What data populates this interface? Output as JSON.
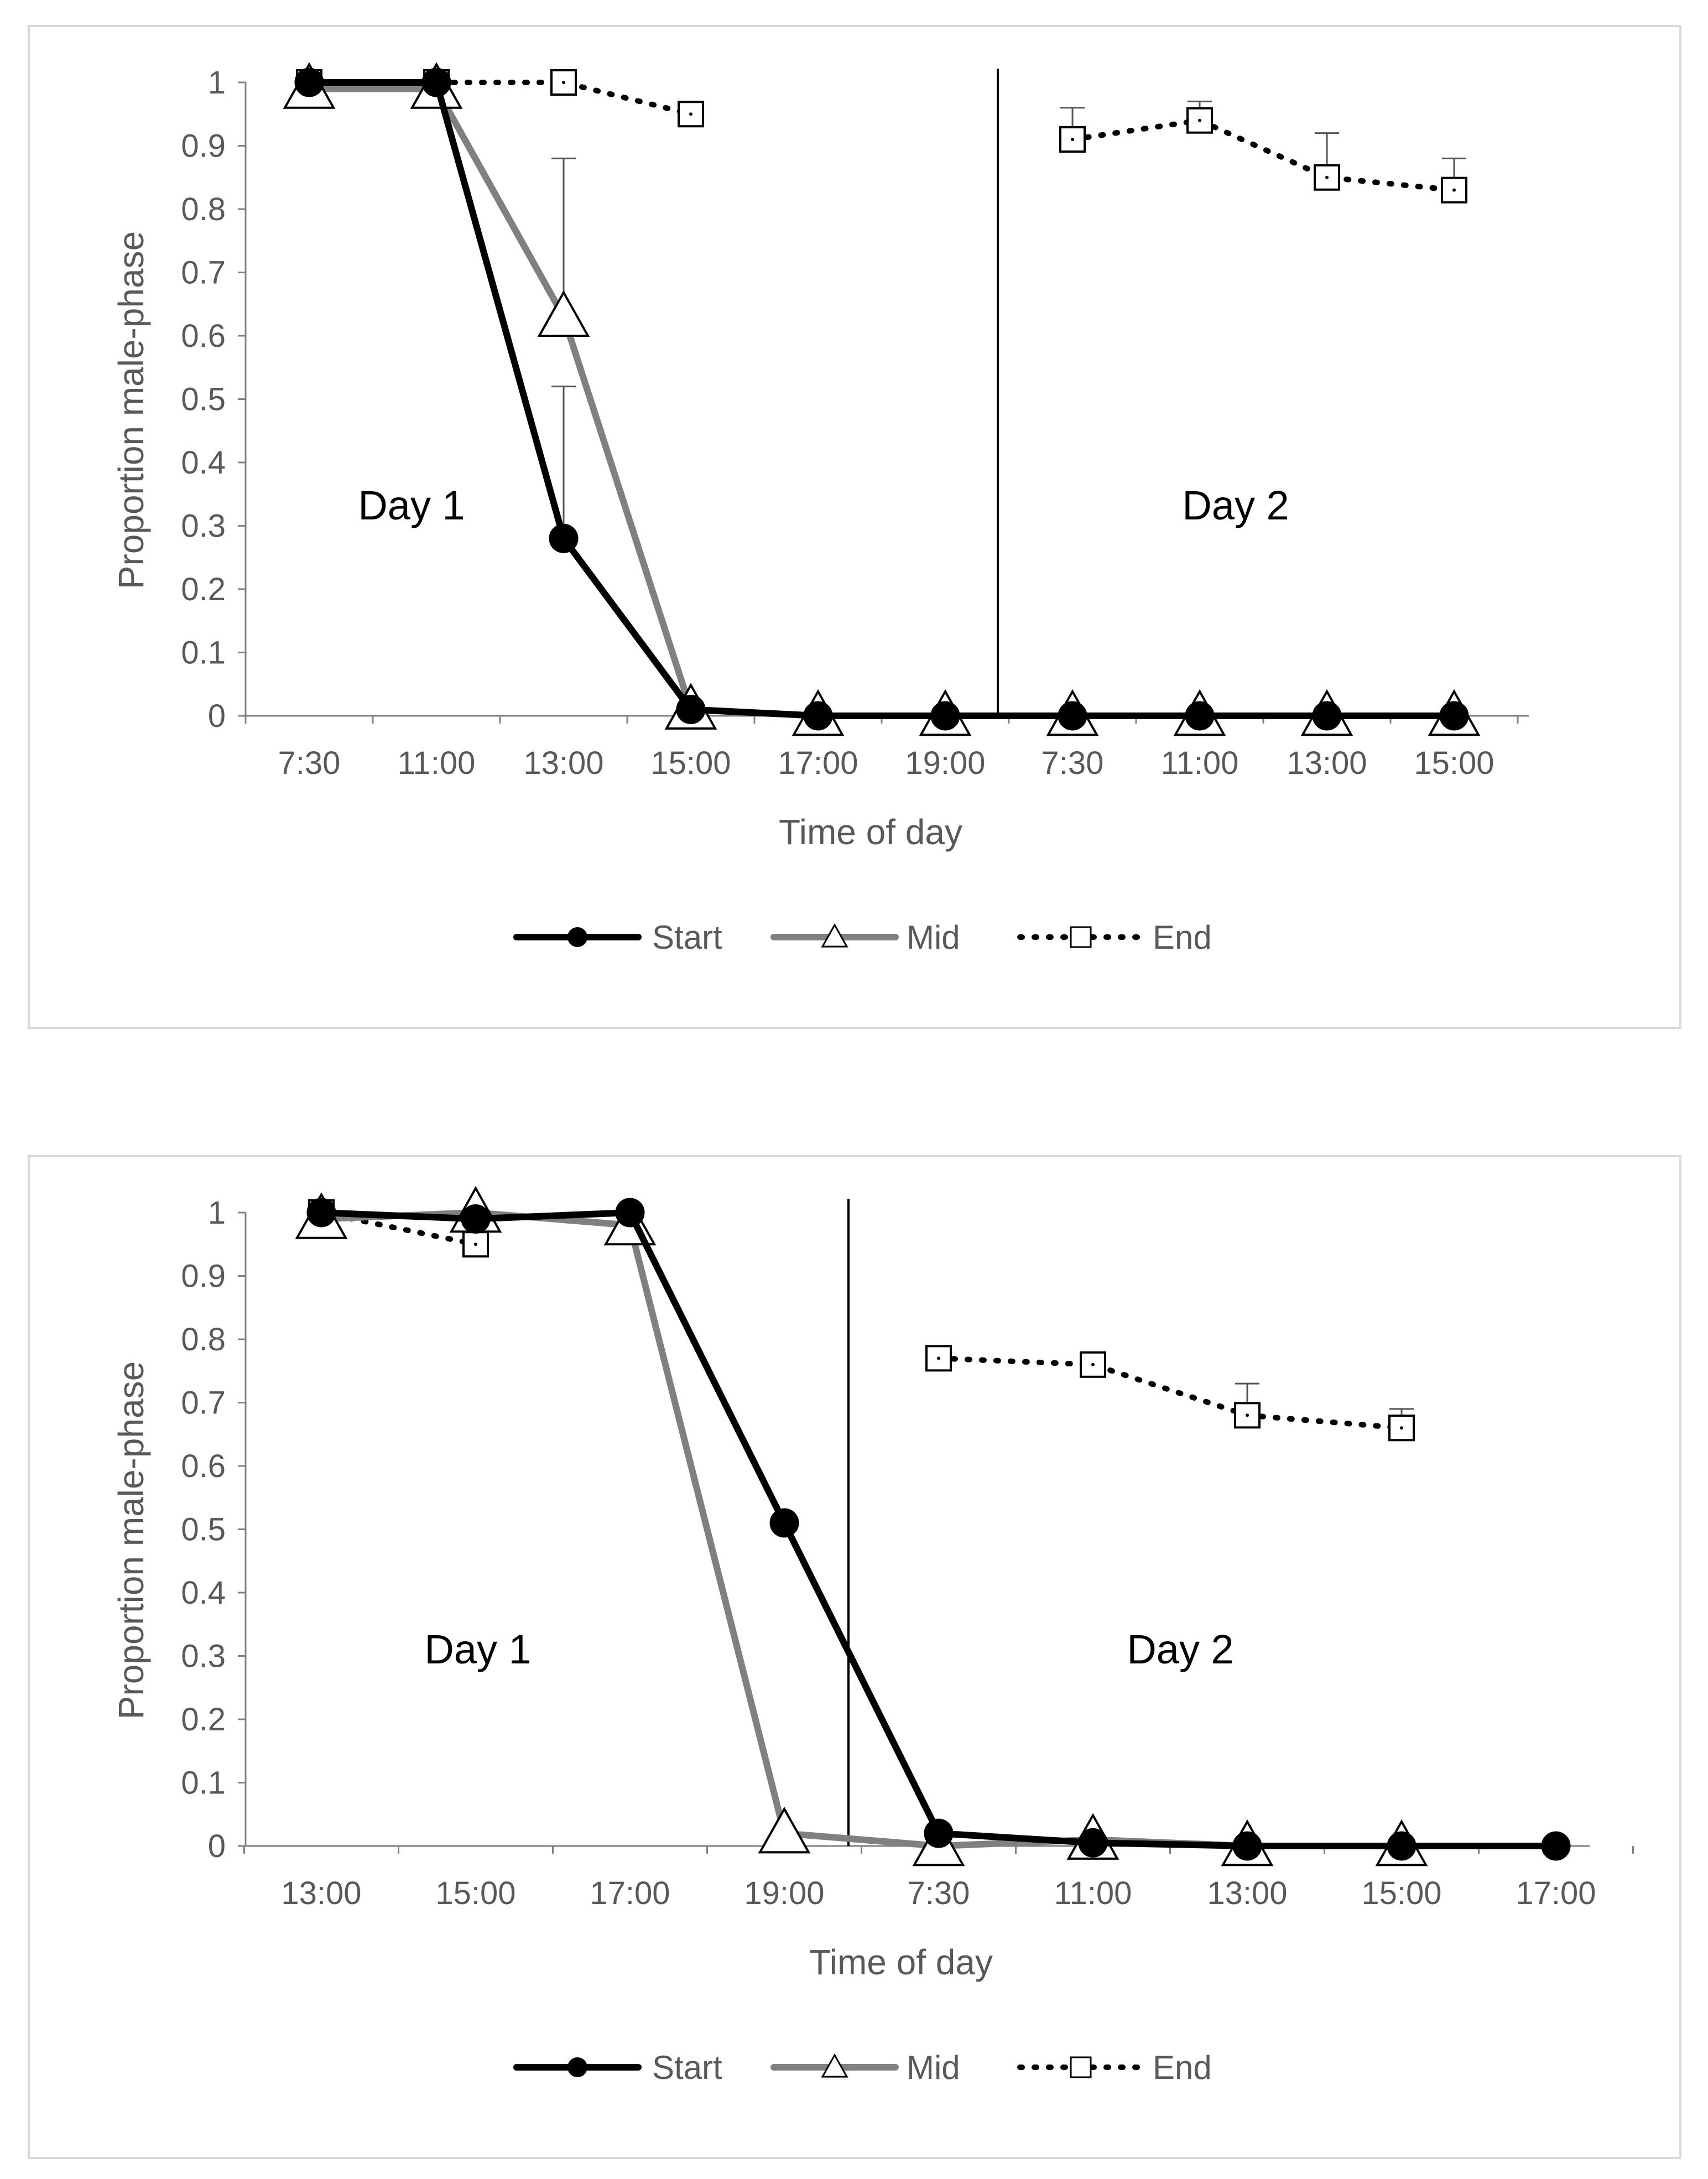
{
  "colors": {
    "start": "#000000",
    "mid": "#808080",
    "end": "#000000",
    "axis": "#808080",
    "text": "#595959",
    "frame": "#d9d9d9"
  },
  "legend": {
    "start": "Start",
    "mid": "Mid",
    "end": "End"
  },
  "chart_data": [
    {
      "type": "line",
      "title": "",
      "xlabel": "Time of day",
      "ylabel": "Proportion male-phase",
      "ylim": [
        0,
        1
      ],
      "yticks": [
        "0",
        "0.1",
        "0.2",
        "0.3",
        "0.4",
        "0.5",
        "0.6",
        "0.7",
        "0.8",
        "0.9",
        "1"
      ],
      "categories": [
        "7:30",
        "11:00",
        "13:00",
        "15:00",
        "17:00",
        "19:00",
        "7:30",
        "11:00",
        "13:00",
        "15:00"
      ],
      "day_labels": [
        "Day 1",
        "Day 2"
      ],
      "day_divider_after_index": 5,
      "series": [
        {
          "name": "Start",
          "values": [
            1,
            1,
            0.28,
            0.01,
            0,
            0,
            0,
            0,
            0,
            0
          ],
          "errors": [
            0,
            0,
            0.24,
            0,
            0,
            0,
            0,
            0,
            0,
            0
          ]
        },
        {
          "name": "Mid",
          "values": [
            0.99,
            0.99,
            0.63,
            0.01,
            0,
            0,
            0,
            0,
            0,
            0
          ],
          "errors": [
            0,
            0,
            0.25,
            0,
            0,
            0,
            0,
            0,
            0,
            0
          ]
        },
        {
          "name": "End",
          "values": [
            1,
            1,
            1,
            0.95,
            null,
            null,
            0.91,
            0.94,
            0.85,
            0.83
          ],
          "errors": [
            0,
            0,
            0,
            0,
            0,
            0,
            0.05,
            0.03,
            0.07,
            0.05
          ]
        }
      ]
    },
    {
      "type": "line",
      "title": "",
      "xlabel": "Time of day",
      "ylabel": "Proportion male-phase",
      "ylim": [
        0,
        1
      ],
      "yticks": [
        "0",
        "0.1",
        "0.2",
        "0.3",
        "0.4",
        "0.5",
        "0.6",
        "0.7",
        "0.8",
        "0.9",
        "1"
      ],
      "categories": [
        "13:00",
        "15:00",
        "17:00",
        "19:00",
        "7:30",
        "11:00",
        "13:00",
        "15:00",
        "17:00"
      ],
      "day_labels": [
        "Day 1",
        "Day 2"
      ],
      "day_divider_after_index": 3,
      "series": [
        {
          "name": "Start",
          "values": [
            1,
            0.99,
            1,
            0.51,
            0.02,
            0.005,
            0,
            0,
            0
          ],
          "errors": [
            0,
            0,
            0,
            0,
            0,
            0,
            0,
            0,
            0
          ]
        },
        {
          "name": "Mid",
          "values": [
            0.99,
            1,
            0.98,
            0.02,
            0,
            0.01,
            0,
            0,
            null
          ],
          "errors": [
            0,
            0,
            0,
            0,
            0,
            0,
            0,
            0,
            0
          ]
        },
        {
          "name": "End",
          "values": [
            1,
            0.95,
            null,
            null,
            0.77,
            0.76,
            0.68,
            0.66,
            null
          ],
          "errors": [
            0,
            0,
            0,
            0,
            0,
            0,
            0.05,
            0.03,
            0
          ]
        }
      ]
    }
  ]
}
